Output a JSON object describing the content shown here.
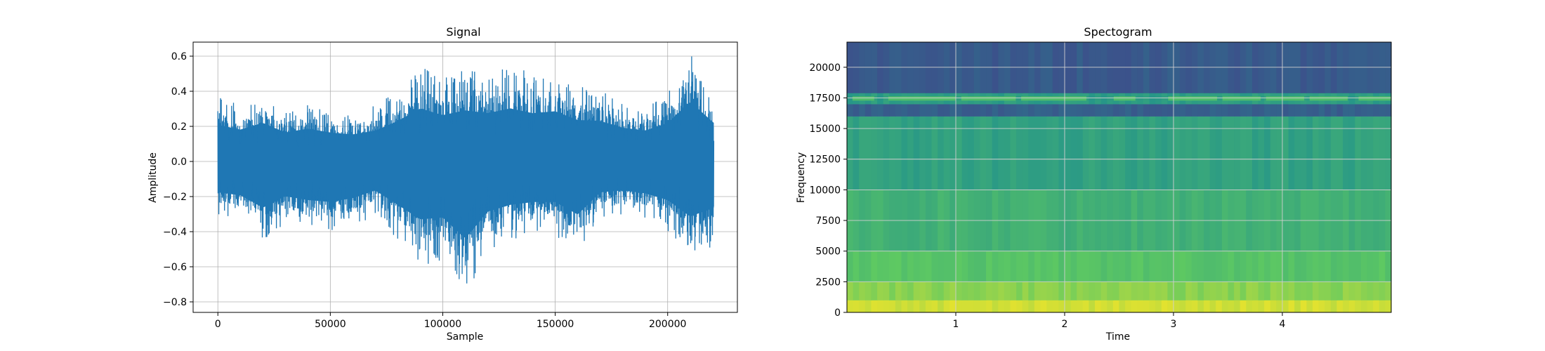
{
  "chart_data": [
    {
      "type": "line",
      "title": "Signal",
      "xlabel": "Sample",
      "ylabel": "Amplitude",
      "xlim": [
        -11000,
        231000
      ],
      "ylim": [
        -0.86,
        0.68
      ],
      "xticks": [
        0,
        50000,
        100000,
        150000,
        200000
      ],
      "xtick_labels": [
        "0",
        "50000",
        "100000",
        "150000",
        "200000"
      ],
      "yticks": [
        -0.8,
        -0.6,
        -0.4,
        -0.2,
        0.0,
        0.2,
        0.4,
        0.6
      ],
      "ytick_labels": [
        "−0.8",
        "−0.6",
        "−0.4",
        "−0.2",
        "0.0",
        "0.2",
        "0.4",
        "0.6"
      ],
      "grid": true,
      "series": [
        {
          "color": "#1f77b4",
          "x": [
            0,
            10000,
            20000,
            30000,
            40000,
            50000,
            60000,
            70000,
            80000,
            90000,
            100000,
            110000,
            120000,
            130000,
            140000,
            150000,
            160000,
            170000,
            180000,
            190000,
            200000,
            210000,
            220500
          ],
          "upper": [
            0.38,
            0.33,
            0.4,
            0.3,
            0.34,
            0.3,
            0.28,
            0.32,
            0.42,
            0.55,
            0.48,
            0.53,
            0.5,
            0.55,
            0.5,
            0.52,
            0.43,
            0.42,
            0.35,
            0.32,
            0.4,
            0.62,
            0.4
          ],
          "lower": [
            -0.32,
            -0.35,
            -0.48,
            -0.36,
            -0.4,
            -0.42,
            -0.38,
            -0.3,
            -0.45,
            -0.6,
            -0.58,
            -0.8,
            -0.52,
            -0.45,
            -0.42,
            -0.42,
            -0.55,
            -0.32,
            -0.3,
            -0.33,
            -0.4,
            -0.57,
            -0.48
          ]
        }
      ]
    },
    {
      "type": "heatmap",
      "title": "Spectogram",
      "xlabel": "Time",
      "ylabel": "Frequency",
      "xlim": [
        0,
        5.0
      ],
      "ylim": [
        0,
        22050
      ],
      "xticks": [
        1,
        2,
        3,
        4
      ],
      "xtick_labels": [
        "1",
        "2",
        "3",
        "4"
      ],
      "yticks": [
        0,
        2500,
        5000,
        7500,
        10000,
        12500,
        15000,
        17500,
        20000
      ],
      "ytick_labels": [
        "0",
        "2500",
        "5000",
        "7500",
        "10000",
        "12500",
        "15000",
        "17500",
        "20000"
      ],
      "grid": true,
      "colormap": "viridis",
      "bands": [
        {
          "freq": [
            0,
            1000
          ],
          "level": 0.93
        },
        {
          "freq": [
            1000,
            2500
          ],
          "level": 0.82
        },
        {
          "freq": [
            2500,
            5000
          ],
          "level": 0.72
        },
        {
          "freq": [
            5000,
            10000
          ],
          "level": 0.64
        },
        {
          "freq": [
            10000,
            16000
          ],
          "level": 0.57
        },
        {
          "freq": [
            16000,
            17000
          ],
          "level": 0.3
        },
        {
          "freq": [
            17000,
            17900
          ],
          "level": 0.55
        },
        {
          "freq": [
            17900,
            22050
          ],
          "level": 0.28
        }
      ],
      "tone_line_freq": 17450,
      "tone_segments": [
        [
          0.05,
          0.25
        ],
        [
          0.38,
          1.0
        ],
        [
          1.05,
          1.55
        ],
        [
          1.6,
          2.2
        ],
        [
          2.45,
          2.65
        ],
        [
          2.95,
          3.4
        ],
        [
          3.45,
          3.8
        ],
        [
          3.85,
          4.2
        ],
        [
          4.25,
          4.6
        ],
        [
          4.7,
          5.0
        ]
      ]
    }
  ]
}
